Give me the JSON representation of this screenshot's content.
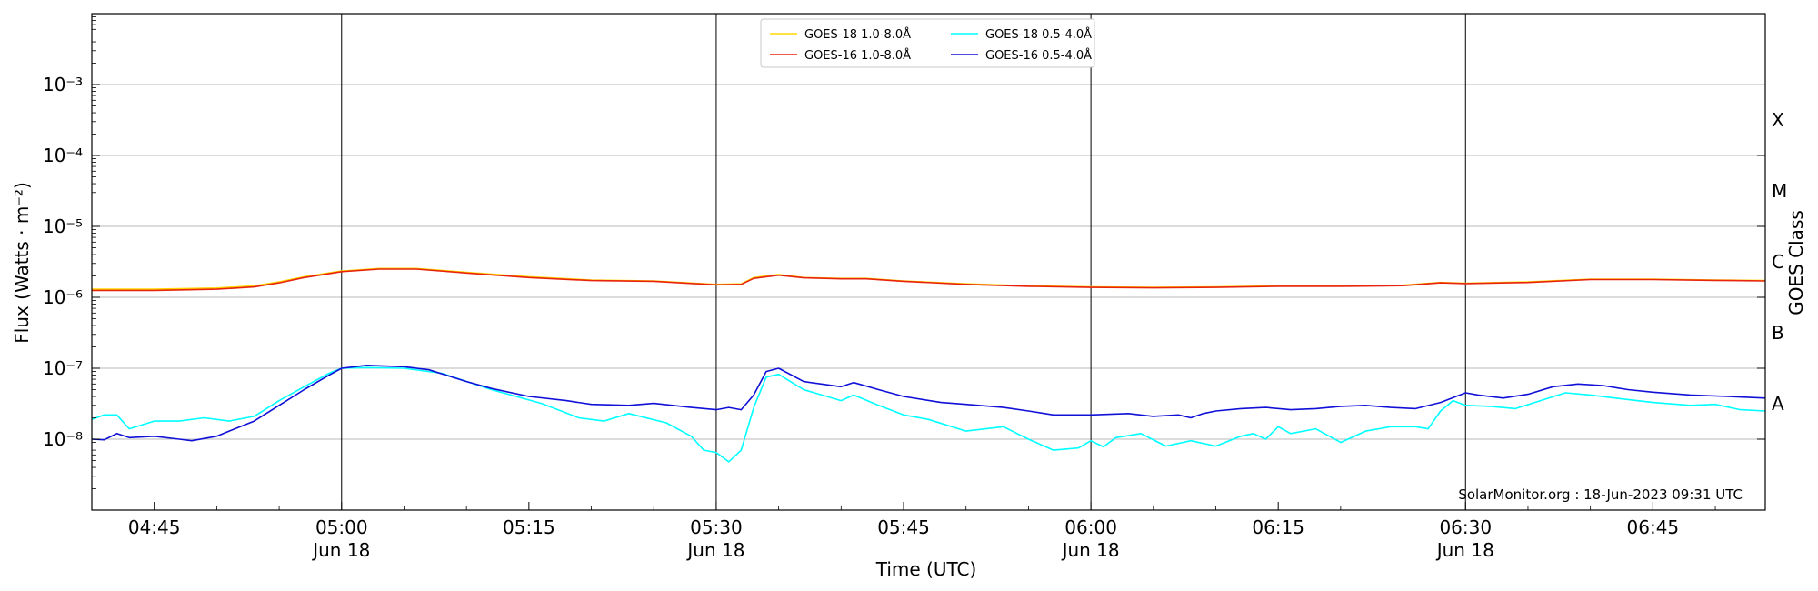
{
  "chart_data": {
    "type": "line",
    "xlabel": "Time (UTC)",
    "ylabel": "Flux (Watts · m⁻²)",
    "y2label": "GOES Class",
    "yscale": "log",
    "xlim": [
      "04:40",
      "06:54"
    ],
    "ylim_exp": [
      -9,
      -2
    ],
    "grid": "horizontal at decades",
    "legend_position": "top-center",
    "credit": "SolarMonitor.org : 18-Jun-2023 09:31 UTC",
    "x_ticks": [
      {
        "time": "04:45",
        "label": "04:45",
        "sub": ""
      },
      {
        "time": "05:00",
        "label": "05:00",
        "sub": "Jun 18"
      },
      {
        "time": "05:15",
        "label": "05:15",
        "sub": ""
      },
      {
        "time": "05:30",
        "label": "05:30",
        "sub": "Jun 18"
      },
      {
        "time": "05:45",
        "label": "05:45",
        "sub": ""
      },
      {
        "time": "06:00",
        "label": "06:00",
        "sub": "Jun 18"
      },
      {
        "time": "06:15",
        "label": "06:15",
        "sub": ""
      },
      {
        "time": "06:30",
        "label": "06:30",
        "sub": "Jun 18"
      },
      {
        "time": "06:45",
        "label": "06:45",
        "sub": ""
      }
    ],
    "vertical_lines": [
      "05:00",
      "05:30",
      "06:00",
      "06:30"
    ],
    "y_ticks": [
      {
        "exp": -8,
        "label": "10⁻⁸"
      },
      {
        "exp": -7,
        "label": "10⁻⁷"
      },
      {
        "exp": -6,
        "label": "10⁻⁶"
      },
      {
        "exp": -5,
        "label": "10⁻⁵"
      },
      {
        "exp": -4,
        "label": "10⁻⁴"
      },
      {
        "exp": -3,
        "label": "10⁻³"
      }
    ],
    "goes_classes": [
      {
        "label": "A",
        "exp": -7.5
      },
      {
        "label": "B",
        "exp": -6.5
      },
      {
        "label": "C",
        "exp": -5.5
      },
      {
        "label": "M",
        "exp": -4.5
      },
      {
        "label": "X",
        "exp": -3.5
      }
    ],
    "series": [
      {
        "name": "GOES-18 1.0-8.0Å",
        "color": "#FFD700",
        "x": [
          "04:40",
          "04:45",
          "04:50",
          "04:53",
          "04:55",
          "04:57",
          "05:00",
          "05:03",
          "05:06",
          "05:10",
          "05:15",
          "05:20",
          "05:25",
          "05:30",
          "05:32",
          "05:33",
          "05:35",
          "05:37",
          "05:40",
          "05:42",
          "05:45",
          "05:50",
          "05:55",
          "06:00",
          "06:05",
          "06:10",
          "06:15",
          "06:20",
          "06:25",
          "06:28",
          "06:30",
          "06:35",
          "06:40",
          "06:45",
          "06:50",
          "06:54"
        ],
        "y": [
          1.3e-06,
          1.3e-06,
          1.35e-06,
          1.45e-06,
          1.65e-06,
          1.95e-06,
          2.35e-06,
          2.55e-06,
          2.55e-06,
          2.25e-06,
          1.95e-06,
          1.75e-06,
          1.7e-06,
          1.52e-06,
          1.55e-06,
          1.9e-06,
          2.1e-06,
          1.9e-06,
          1.85e-06,
          1.85e-06,
          1.7e-06,
          1.55e-06,
          1.45e-06,
          1.4e-06,
          1.38e-06,
          1.4e-06,
          1.45e-06,
          1.45e-06,
          1.48e-06,
          1.62e-06,
          1.58e-06,
          1.65e-06,
          1.8e-06,
          1.8e-06,
          1.75e-06,
          1.72e-06
        ]
      },
      {
        "name": "GOES-16 1.0-8.0Å",
        "color": "#E8230E",
        "x": [
          "04:40",
          "04:45",
          "04:50",
          "04:53",
          "04:55",
          "04:57",
          "05:00",
          "05:03",
          "05:06",
          "05:10",
          "05:15",
          "05:20",
          "05:25",
          "05:30",
          "05:32",
          "05:33",
          "05:35",
          "05:37",
          "05:40",
          "05:42",
          "05:45",
          "05:50",
          "05:55",
          "06:00",
          "06:05",
          "06:10",
          "06:15",
          "06:20",
          "06:25",
          "06:28",
          "06:30",
          "06:35",
          "06:40",
          "06:45",
          "06:50",
          "06:54"
        ],
        "y": [
          1.25e-06,
          1.25e-06,
          1.3e-06,
          1.4e-06,
          1.6e-06,
          1.9e-06,
          2.3e-06,
          2.5e-06,
          2.5e-06,
          2.2e-06,
          1.9e-06,
          1.72e-06,
          1.68e-06,
          1.5e-06,
          1.52e-06,
          1.85e-06,
          2.05e-06,
          1.88e-06,
          1.82e-06,
          1.82e-06,
          1.68e-06,
          1.52e-06,
          1.43e-06,
          1.38e-06,
          1.36e-06,
          1.38e-06,
          1.43e-06,
          1.43e-06,
          1.46e-06,
          1.6e-06,
          1.56e-06,
          1.62e-06,
          1.78e-06,
          1.78e-06,
          1.73e-06,
          1.7e-06
        ]
      },
      {
        "name": "GOES-18 0.5-4.0Å",
        "color": "#00FFFF",
        "x": [
          "04:40",
          "04:41",
          "04:42",
          "04:43",
          "04:45",
          "04:47",
          "04:49",
          "04:51",
          "04:53",
          "04:55",
          "04:57",
          "04:59",
          "05:00",
          "05:02",
          "05:05",
          "05:08",
          "05:12",
          "05:16",
          "05:19",
          "05:21",
          "05:23",
          "05:26",
          "05:28",
          "05:29",
          "05:30",
          "05:31",
          "05:32",
          "05:33",
          "05:34",
          "05:35",
          "05:37",
          "05:40",
          "05:41",
          "05:43",
          "05:45",
          "05:47",
          "05:50",
          "05:53",
          "05:55",
          "05:57",
          "05:59",
          "06:00",
          "06:01",
          "06:02",
          "06:04",
          "06:06",
          "06:08",
          "06:10",
          "06:12",
          "06:13",
          "06:14",
          "06:15",
          "06:16",
          "06:18",
          "06:20",
          "06:22",
          "06:24",
          "06:26",
          "06:27",
          "06:28",
          "06:29",
          "06:30",
          "06:32",
          "06:34",
          "06:36",
          "06:38",
          "06:40",
          "06:42",
          "06:45",
          "06:48",
          "06:50",
          "06:52",
          "06:54"
        ],
        "y": [
          1.9e-08,
          2.2e-08,
          2.2e-08,
          1.4e-08,
          1.8e-08,
          1.8e-08,
          2e-08,
          1.8e-08,
          2.1e-08,
          3.5e-08,
          5.5e-08,
          8.5e-08,
          1e-07,
          1.02e-07,
          1e-07,
          8.5e-08,
          5e-08,
          3.2e-08,
          2e-08,
          1.8e-08,
          2.3e-08,
          1.7e-08,
          1.1e-08,
          7e-09,
          6.5e-09,
          4.8e-09,
          7e-09,
          2.8e-08,
          7.5e-08,
          8.2e-08,
          5e-08,
          3.5e-08,
          4.2e-08,
          3e-08,
          2.2e-08,
          1.9e-08,
          1.3e-08,
          1.5e-08,
          1e-08,
          7e-09,
          7.5e-09,
          9.5e-09,
          7.8e-09,
          1.05e-08,
          1.2e-08,
          8e-09,
          9.5e-09,
          8e-09,
          1.1e-08,
          1.2e-08,
          1e-08,
          1.5e-08,
          1.2e-08,
          1.4e-08,
          9e-09,
          1.3e-08,
          1.5e-08,
          1.5e-08,
          1.4e-08,
          2.5e-08,
          3.5e-08,
          3e-08,
          2.9e-08,
          2.7e-08,
          3.5e-08,
          4.5e-08,
          4.2e-08,
          3.8e-08,
          3.3e-08,
          3e-08,
          3.1e-08,
          2.6e-08,
          2.5e-08
        ]
      },
      {
        "name": "GOES-16 0.5-4.0Å",
        "color": "#1010D8",
        "x": [
          "04:40",
          "04:41",
          "04:42",
          "04:43",
          "04:45",
          "04:47",
          "04:48",
          "04:50",
          "04:51",
          "04:53",
          "04:55",
          "04:57",
          "04:59",
          "05:00",
          "05:02",
          "05:05",
          "05:07",
          "05:10",
          "05:12",
          "05:15",
          "05:18",
          "05:20",
          "05:23",
          "05:25",
          "05:28",
          "05:30",
          "05:31",
          "05:32",
          "05:33",
          "05:34",
          "05:35",
          "05:37",
          "05:40",
          "05:41",
          "05:43",
          "05:45",
          "05:48",
          "05:50",
          "05:53",
          "05:55",
          "05:57",
          "06:00",
          "06:03",
          "06:05",
          "06:07",
          "06:08",
          "06:09",
          "06:10",
          "06:12",
          "06:14",
          "06:16",
          "06:18",
          "06:20",
          "06:22",
          "06:24",
          "06:26",
          "06:28",
          "06:30",
          "06:31",
          "06:33",
          "06:35",
          "06:37",
          "06:39",
          "06:41",
          "06:43",
          "06:45",
          "06:48",
          "06:51",
          "06:54"
        ],
        "y": [
          1e-08,
          9.8e-09,
          1.2e-08,
          1.05e-08,
          1.1e-08,
          1e-08,
          9.5e-09,
          1.1e-08,
          1.3e-08,
          1.8e-08,
          3e-08,
          5e-08,
          8e-08,
          1e-07,
          1.1e-07,
          1.05e-07,
          9.5e-08,
          6.5e-08,
          5.2e-08,
          4e-08,
          3.5e-08,
          3.1e-08,
          3e-08,
          3.2e-08,
          2.8e-08,
          2.6e-08,
          2.8e-08,
          2.6e-08,
          4.2e-08,
          9e-08,
          1e-07,
          6.5e-08,
          5.5e-08,
          6.3e-08,
          5e-08,
          4e-08,
          3.3e-08,
          3.1e-08,
          2.8e-08,
          2.5e-08,
          2.2e-08,
          2.2e-08,
          2.3e-08,
          2.1e-08,
          2.2e-08,
          2e-08,
          2.3e-08,
          2.5e-08,
          2.7e-08,
          2.8e-08,
          2.6e-08,
          2.7e-08,
          2.9e-08,
          3e-08,
          2.8e-08,
          2.7e-08,
          3.3e-08,
          4.5e-08,
          4.2e-08,
          3.8e-08,
          4.3e-08,
          5.5e-08,
          6e-08,
          5.7e-08,
          5e-08,
          4.6e-08,
          4.2e-08,
          4e-08,
          3.8e-08
        ]
      }
    ]
  }
}
